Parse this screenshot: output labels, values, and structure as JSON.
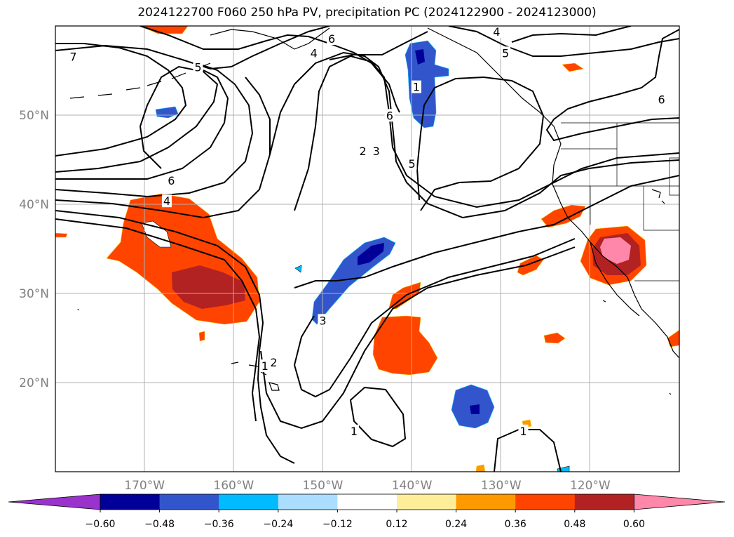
{
  "title": "2024122700 F060 250 hPa PV, precipitation PC (2024122900 - 2024123000)",
  "map": {
    "lon_range": [
      -180,
      -110
    ],
    "lat_range": [
      10,
      60
    ],
    "lon_ticks": [
      {
        "value": -170,
        "label": "170°W"
      },
      {
        "value": -160,
        "label": "160°W"
      },
      {
        "value": -150,
        "label": "150°W"
      },
      {
        "value": -140,
        "label": "140°W"
      },
      {
        "value": -130,
        "label": "130°W"
      },
      {
        "value": -120,
        "label": "120°W"
      }
    ],
    "lat_ticks": [
      {
        "value": 50,
        "label": "50°N"
      },
      {
        "value": 40,
        "label": "40°N"
      },
      {
        "value": 30,
        "label": "30°N"
      },
      {
        "value": 20,
        "label": "20°N"
      }
    ],
    "pv_contour_labels": [
      {
        "text": "7",
        "lon": -178,
        "lat": 56.5
      },
      {
        "text": "6",
        "lon": -149,
        "lat": 58.5
      },
      {
        "text": "5",
        "lon": -164,
        "lat": 55.3
      },
      {
        "text": "4",
        "lon": -130.5,
        "lat": 59.3
      },
      {
        "text": "5",
        "lon": -129.5,
        "lat": 56.9
      },
      {
        "text": "4",
        "lon": -151,
        "lat": 56.9
      },
      {
        "text": "1",
        "lon": -139.5,
        "lat": 53.1
      },
      {
        "text": "6",
        "lon": -142.5,
        "lat": 49.9
      },
      {
        "text": "6",
        "lon": -112,
        "lat": 51.7
      },
      {
        "text": "2",
        "lon": -145.5,
        "lat": 45.9
      },
      {
        "text": "3",
        "lon": -144,
        "lat": 45.9
      },
      {
        "text": "5",
        "lon": -140,
        "lat": 44.5
      },
      {
        "text": "6",
        "lon": -167,
        "lat": 42.6
      },
      {
        "text": "4",
        "lon": -167.5,
        "lat": 40.3
      },
      {
        "text": "3",
        "lon": -150,
        "lat": 26.9
      },
      {
        "text": "1",
        "lon": -156.5,
        "lat": 21.8
      },
      {
        "text": "2",
        "lon": -155.5,
        "lat": 22.2
      },
      {
        "text": "1",
        "lon": -146.5,
        "lat": 14.5
      },
      {
        "text": "1",
        "lon": -127.5,
        "lat": 14.5
      }
    ]
  },
  "colorbar": {
    "ticks": [
      "−0.60",
      "−0.48",
      "−0.36",
      "−0.24",
      "−0.12",
      "0.12",
      "0.24",
      "0.36",
      "0.48",
      "0.60"
    ],
    "colors": [
      "#9933cc",
      "#000099",
      "#3355cc",
      "#00bbff",
      "#aaddff",
      "#ffffff",
      "#ffee99",
      "#ff9900",
      "#ff4400",
      "#b22222",
      "#ff88aa"
    ]
  }
}
